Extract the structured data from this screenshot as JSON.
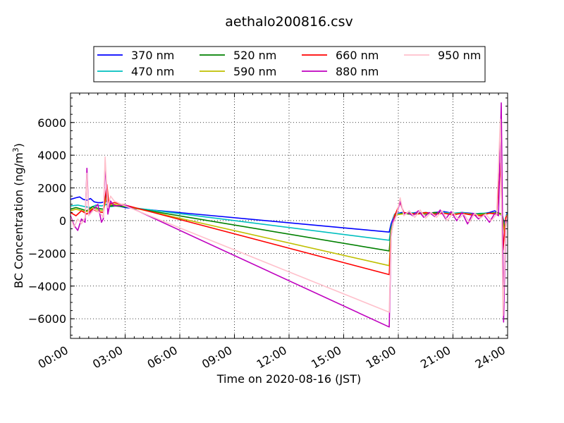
{
  "chart_data": {
    "type": "line",
    "title": "aethalo200816.csv",
    "xlabel": "Time on 2020-08-16 (JST)",
    "ylabel_main": "BC Concentration (ng/m",
    "ylabel_sup": "3",
    "ylabel_close": ")",
    "xlim": [
      0,
      24
    ],
    "ylim": [
      -7200,
      7800
    ],
    "grid": true,
    "legend_position": "top-center, above plot",
    "xticks": [
      0,
      3,
      6,
      9,
      12,
      15,
      18,
      21,
      24
    ],
    "xtick_labels": [
      "00:00",
      "03:00",
      "06:00",
      "09:00",
      "12:00",
      "15:00",
      "18:00",
      "21:00",
      "24:00"
    ],
    "yticks": [
      -6000,
      -4000,
      -2000,
      0,
      2000,
      4000,
      6000
    ],
    "ytick_labels": [
      "−6000",
      "−4000",
      "−2000",
      "0",
      "2000",
      "4000",
      "6000"
    ],
    "series": [
      {
        "name": "370 nm",
        "color": "#0000ff",
        "points": [
          [
            0,
            1300
          ],
          [
            0.3,
            1400
          ],
          [
            0.5,
            1450
          ],
          [
            0.7,
            1300
          ],
          [
            0.9,
            1250
          ],
          [
            1.1,
            1350
          ],
          [
            1.3,
            1150
          ],
          [
            1.5,
            1100
          ],
          [
            1.7,
            1100
          ],
          [
            1.85,
            1150
          ],
          [
            2.0,
            1200
          ],
          [
            2.2,
            900
          ],
          [
            2.4,
            950
          ],
          [
            2.6,
            900
          ],
          [
            3.0,
            800
          ],
          [
            17.5,
            -700
          ],
          [
            17.6,
            -200
          ],
          [
            17.8,
            400
          ],
          [
            18.2,
            500
          ],
          [
            18.6,
            450
          ],
          [
            19.0,
            500
          ],
          [
            19.5,
            450
          ],
          [
            20.0,
            500
          ],
          [
            20.5,
            550
          ],
          [
            21.0,
            450
          ],
          [
            21.5,
            500
          ],
          [
            22.0,
            450
          ],
          [
            22.5,
            400
          ],
          [
            23.0,
            500
          ],
          [
            23.3,
            600
          ],
          [
            23.5,
            450
          ],
          [
            23.7,
            300
          ],
          [
            23.85,
            -200
          ],
          [
            23.95,
            400
          ],
          [
            24,
            500
          ]
        ]
      },
      {
        "name": "470 nm",
        "color": "#00bfbf",
        "points": [
          [
            0,
            900
          ],
          [
            0.4,
            950
          ],
          [
            0.8,
            850
          ],
          [
            1.1,
            800
          ],
          [
            1.4,
            950
          ],
          [
            1.7,
            900
          ],
          [
            2.0,
            1000
          ],
          [
            2.2,
            850
          ],
          [
            2.5,
            900
          ],
          [
            3.0,
            850
          ],
          [
            17.5,
            -1200
          ],
          [
            17.6,
            -400
          ],
          [
            17.8,
            400
          ],
          [
            18.2,
            450
          ],
          [
            18.6,
            500
          ],
          [
            19.0,
            450
          ],
          [
            19.5,
            500
          ],
          [
            20.0,
            450
          ],
          [
            20.5,
            500
          ],
          [
            21.0,
            450
          ],
          [
            21.5,
            500
          ],
          [
            22.0,
            400
          ],
          [
            22.5,
            450
          ],
          [
            23.0,
            450
          ],
          [
            23.4,
            500
          ],
          [
            23.7,
            400
          ],
          [
            23.85,
            -400
          ],
          [
            23.95,
            300
          ],
          [
            24,
            450
          ]
        ]
      },
      {
        "name": "520 nm",
        "color": "#008000",
        "points": [
          [
            0,
            700
          ],
          [
            0.3,
            800
          ],
          [
            0.6,
            700
          ],
          [
            0.9,
            600
          ],
          [
            1.2,
            850
          ],
          [
            1.5,
            750
          ],
          [
            1.8,
            700
          ],
          [
            2.0,
            1800
          ],
          [
            2.1,
            900
          ],
          [
            2.4,
            900
          ],
          [
            3.0,
            850
          ],
          [
            17.5,
            -1850
          ],
          [
            17.6,
            -500
          ],
          [
            17.8,
            300
          ],
          [
            18.2,
            450
          ],
          [
            18.6,
            400
          ],
          [
            19.0,
            450
          ],
          [
            19.5,
            400
          ],
          [
            20.0,
            500
          ],
          [
            20.5,
            450
          ],
          [
            21.0,
            400
          ],
          [
            21.5,
            450
          ],
          [
            22.0,
            400
          ],
          [
            22.5,
            400
          ],
          [
            23.0,
            450
          ],
          [
            23.4,
            500
          ],
          [
            23.7,
            400
          ],
          [
            23.85,
            -600
          ],
          [
            23.95,
            300
          ],
          [
            24,
            400
          ]
        ]
      },
      {
        "name": "590 nm",
        "color": "#bfbf00",
        "points": [
          [
            0,
            600
          ],
          [
            0.3,
            700
          ],
          [
            0.6,
            600
          ],
          [
            0.9,
            550
          ],
          [
            1.2,
            750
          ],
          [
            1.5,
            650
          ],
          [
            1.8,
            600
          ],
          [
            2.0,
            1500
          ],
          [
            2.1,
            950
          ],
          [
            2.4,
            1000
          ],
          [
            3.0,
            900
          ],
          [
            17.5,
            -2750
          ],
          [
            17.6,
            -600
          ],
          [
            17.8,
            350
          ],
          [
            18.2,
            400
          ],
          [
            18.6,
            450
          ],
          [
            19.0,
            400
          ],
          [
            19.5,
            450
          ],
          [
            20.0,
            400
          ],
          [
            20.5,
            450
          ],
          [
            21.0,
            400
          ],
          [
            21.5,
            450
          ],
          [
            22.0,
            400
          ],
          [
            22.5,
            350
          ],
          [
            23.0,
            450
          ],
          [
            23.4,
            450
          ],
          [
            23.7,
            350
          ],
          [
            23.85,
            -900
          ],
          [
            23.95,
            300
          ],
          [
            24,
            400
          ]
        ]
      },
      {
        "name": "660 nm",
        "color": "#ff0000",
        "points": [
          [
            0,
            500
          ],
          [
            0.3,
            300
          ],
          [
            0.6,
            600
          ],
          [
            0.9,
            400
          ],
          [
            1.2,
            700
          ],
          [
            1.5,
            550
          ],
          [
            1.8,
            500
          ],
          [
            2.0,
            2200
          ],
          [
            2.1,
            1000
          ],
          [
            2.4,
            1100
          ],
          [
            3.0,
            950
          ],
          [
            17.5,
            -3300
          ],
          [
            17.6,
            -800
          ],
          [
            17.8,
            300
          ],
          [
            18.1,
            1100
          ],
          [
            18.3,
            500
          ],
          [
            18.6,
            450
          ],
          [
            19.0,
            400
          ],
          [
            19.5,
            500
          ],
          [
            20.0,
            400
          ],
          [
            20.5,
            450
          ],
          [
            21.0,
            350
          ],
          [
            21.5,
            450
          ],
          [
            22.0,
            350
          ],
          [
            22.5,
            300
          ],
          [
            23.0,
            450
          ],
          [
            23.4,
            400
          ],
          [
            23.6,
            3500
          ],
          [
            23.75,
            -1800
          ],
          [
            23.9,
            200
          ],
          [
            24,
            300
          ]
        ]
      },
      {
        "name": "880 nm",
        "color": "#bf00bf",
        "points": [
          [
            0,
            300
          ],
          [
            0.2,
            -300
          ],
          [
            0.4,
            -600
          ],
          [
            0.6,
            100
          ],
          [
            0.8,
            -100
          ],
          [
            0.9,
            3200
          ],
          [
            1.0,
            400
          ],
          [
            1.2,
            600
          ],
          [
            1.5,
            1000
          ],
          [
            1.7,
            -100
          ],
          [
            1.8,
            100
          ],
          [
            1.9,
            3500
          ],
          [
            2.05,
            400
          ],
          [
            2.2,
            1200
          ],
          [
            2.4,
            900
          ],
          [
            3.0,
            950
          ],
          [
            17.5,
            -6500
          ],
          [
            17.6,
            -1000
          ],
          [
            17.7,
            0
          ],
          [
            17.9,
            300
          ],
          [
            18.1,
            1200
          ],
          [
            18.3,
            400
          ],
          [
            18.5,
            500
          ],
          [
            18.8,
            300
          ],
          [
            19.1,
            600
          ],
          [
            19.4,
            200
          ],
          [
            19.7,
            500
          ],
          [
            20.0,
            250
          ],
          [
            20.3,
            650
          ],
          [
            20.6,
            100
          ],
          [
            20.9,
            550
          ],
          [
            21.2,
            0
          ],
          [
            21.5,
            500
          ],
          [
            21.8,
            -200
          ],
          [
            22.1,
            450
          ],
          [
            22.4,
            100
          ],
          [
            22.7,
            350
          ],
          [
            23.0,
            -100
          ],
          [
            23.3,
            450
          ],
          [
            23.5,
            300
          ],
          [
            23.65,
            7200
          ],
          [
            23.78,
            -6200
          ],
          [
            23.9,
            -200
          ],
          [
            24,
            200
          ]
        ]
      },
      {
        "name": "950 nm",
        "color": "#ffc0cb",
        "points": [
          [
            0,
            200
          ],
          [
            0.2,
            -400
          ],
          [
            0.4,
            100
          ],
          [
            0.6,
            -200
          ],
          [
            0.8,
            200
          ],
          [
            0.9,
            2900
          ],
          [
            1.0,
            300
          ],
          [
            1.3,
            700
          ],
          [
            1.6,
            500
          ],
          [
            1.8,
            200
          ],
          [
            1.9,
            3900
          ],
          [
            2.05,
            800
          ],
          [
            2.2,
            1500
          ],
          [
            2.4,
            1200
          ],
          [
            3.0,
            900
          ],
          [
            17.5,
            -5600
          ],
          [
            17.6,
            -900
          ],
          [
            17.7,
            -200
          ],
          [
            17.9,
            300
          ],
          [
            18.1,
            1400
          ],
          [
            18.3,
            300
          ],
          [
            18.6,
            600
          ],
          [
            18.9,
            200
          ],
          [
            19.2,
            650
          ],
          [
            19.5,
            150
          ],
          [
            19.8,
            500
          ],
          [
            20.1,
            200
          ],
          [
            20.4,
            600
          ],
          [
            20.7,
            0
          ],
          [
            21.0,
            500
          ],
          [
            21.3,
            100
          ],
          [
            21.6,
            400
          ],
          [
            21.9,
            -100
          ],
          [
            22.2,
            450
          ],
          [
            22.5,
            150
          ],
          [
            22.8,
            400
          ],
          [
            23.1,
            0
          ],
          [
            23.4,
            400
          ],
          [
            23.6,
            6200
          ],
          [
            23.75,
            -5800
          ],
          [
            23.9,
            -100
          ],
          [
            24,
            300
          ]
        ]
      }
    ]
  }
}
